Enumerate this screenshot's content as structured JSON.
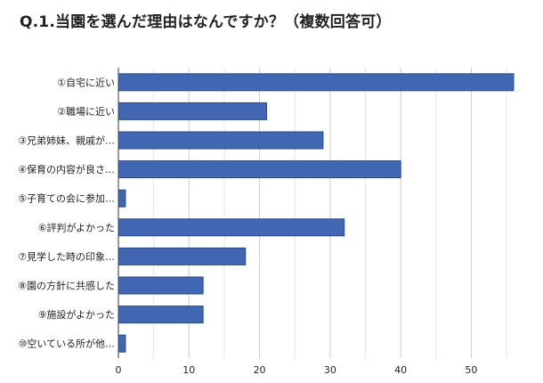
{
  "chart_data": {
    "type": "bar",
    "orientation": "horizontal",
    "title": "Q.1.当園を選んだ理由はなんですか？（複数回答可）",
    "categories": [
      "①自宅に近い",
      "②職場に近い",
      "③兄弟姉妹、親戚が…",
      "④保育の内容が良さ…",
      "⑤子育ての会に参加…",
      "⑥評判がよかった",
      "⑦見学した時の印象…",
      "⑧園の方針に共感した",
      "⑨施設がよかった",
      "⑩空いている所が他…"
    ],
    "values": [
      56,
      21,
      29,
      40,
      1,
      32,
      18,
      12,
      12,
      1
    ],
    "xlim": [
      0,
      56
    ],
    "xticks": [
      0,
      10,
      20,
      30,
      40,
      50
    ],
    "grid": true,
    "legend": "none",
    "bar_color": "#4267b2",
    "bar_edge_color": "#2b4a86",
    "grid_color": "#cccccc"
  }
}
